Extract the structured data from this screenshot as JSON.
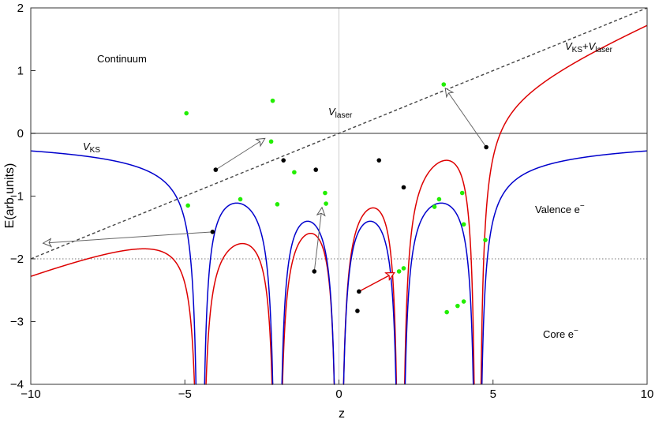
{
  "chart_data": {
    "type": "line",
    "title": "",
    "xlabel": "z",
    "ylabel": "E(arb units)",
    "xlim": [
      -10,
      10
    ],
    "ylim": [
      -4,
      2
    ],
    "x_ticks": [
      -10,
      -5,
      0,
      5,
      10
    ],
    "x_tick_labels": [
      "−10",
      "−5",
      "0",
      "5",
      "10"
    ],
    "y_ticks": [
      2,
      1,
      0,
      -1,
      -2,
      -3,
      -4
    ],
    "y_tick_labels": [
      "2",
      "1",
      "0",
      "−1",
      "−2",
      "−3",
      "−4"
    ],
    "grid": false,
    "reference_lines": {
      "zero_energy": 0,
      "core_boundary": -2,
      "center_z": 0
    },
    "nuclei_z": [
      -4.5,
      -2,
      0,
      2,
      4.5
    ],
    "laser_field_slope": 0.2,
    "colors": {
      "v_ks": "#0000cc",
      "v_ks_laser": "#dd0000",
      "v_laser": "#444444",
      "green_dots": "#22ee00",
      "black_dots": "#000000",
      "red_arrow": "#dd0000"
    },
    "annotations": {
      "continuum": "Continuum",
      "valence": "Valence e",
      "valence_sup": "−",
      "core": "Core e",
      "core_sup": "−",
      "v_ks": "V",
      "v_ks_sub": "KS",
      "v_laser": "V",
      "v_laser_sub": "laser",
      "v_ks_laser_1": "V",
      "v_ks_laser_1_sub": "KS",
      "v_ks_laser_plus": "+",
      "v_ks_laser_2": "V",
      "v_ks_laser_2_sub": "laser"
    },
    "green_points": [
      [
        -4.95,
        0.32
      ],
      [
        -2.15,
        0.52
      ],
      [
        -2.2,
        -0.13
      ],
      [
        -4.9,
        -1.15
      ],
      [
        -3.2,
        -1.05
      ],
      [
        -2.0,
        -1.13
      ],
      [
        -1.45,
        -0.62
      ],
      [
        -0.45,
        -0.95
      ],
      [
        -0.42,
        -1.12
      ],
      [
        3.4,
        0.78
      ],
      [
        4.0,
        -0.95
      ],
      [
        3.25,
        -1.05
      ],
      [
        3.1,
        -1.17
      ],
      [
        4.05,
        -1.45
      ],
      [
        4.75,
        -1.7
      ],
      [
        1.95,
        -2.2
      ],
      [
        2.1,
        -2.15
      ],
      [
        3.5,
        -2.85
      ],
      [
        3.85,
        -2.75
      ],
      [
        4.05,
        -2.68
      ]
    ],
    "black_points": [
      [
        -4.0,
        -0.58
      ],
      [
        -1.8,
        -0.43
      ],
      [
        -0.75,
        -0.58
      ],
      [
        1.3,
        -0.43
      ],
      [
        2.1,
        -0.86
      ],
      [
        -4.1,
        -1.57
      ],
      [
        -0.8,
        -2.2
      ],
      [
        0.65,
        -2.52
      ],
      [
        0.6,
        -2.83
      ],
      [
        4.78,
        -0.22
      ]
    ],
    "arrows": [
      {
        "from": [
          -4.0,
          -0.58
        ],
        "to": [
          -2.4,
          -0.08
        ],
        "color": "gray"
      },
      {
        "from": [
          -4.1,
          -1.57
        ],
        "to": [
          -9.6,
          -1.75
        ],
        "color": "gray"
      },
      {
        "from": [
          -0.8,
          -2.2
        ],
        "to": [
          -0.55,
          -1.18
        ],
        "color": "gray"
      },
      {
        "from": [
          4.78,
          -0.22
        ],
        "to": [
          3.45,
          0.72
        ],
        "color": "gray"
      },
      {
        "from": [
          0.65,
          -2.52
        ],
        "to": [
          1.8,
          -2.22
        ],
        "color": "red"
      }
    ]
  }
}
